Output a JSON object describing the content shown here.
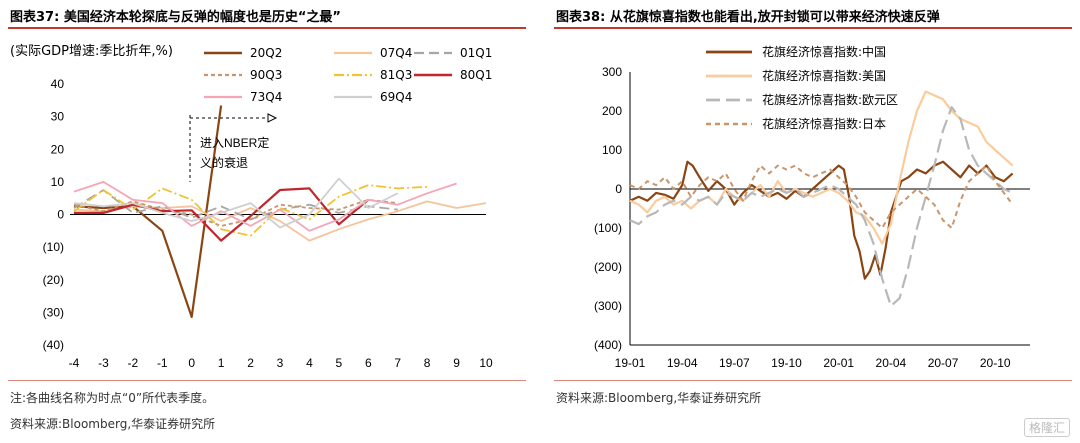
{
  "left": {
    "title": "图表37:  美国经济本轮探底与反弹的幅度也是历史“之最”",
    "unit": "(实际GDP增速:季比折年,%)",
    "annotation_line1": "进入NBER定",
    "annotation_line2": "义的衰退",
    "note": "注:各曲线名称为时点“0”所代表季度。",
    "source": "资料来源:Bloomberg,华泰证券研究所"
  },
  "right": {
    "title": "图表38:  从花旗惊喜指数也能看出,放开封锁可以带来经济快速反弹",
    "source": "资料来源:Bloomberg,华泰证券研究所"
  },
  "watermark": "格隆汇",
  "chart_data": [
    {
      "type": "line",
      "title": "美国经济本轮探底与反弹的幅度也是历史“之最”",
      "ylabel": "(实际GDP增速:季比折年,%)",
      "x": [
        -4,
        -3,
        -2,
        -1,
        0,
        1,
        2,
        3,
        4,
        5,
        6,
        7,
        8,
        9,
        10
      ],
      "ylim": [
        -40,
        40
      ],
      "yticks": [
        40,
        30,
        20,
        10,
        0,
        -10,
        -20,
        -30,
        -40
      ],
      "ytick_labels": [
        "40",
        "30",
        "20",
        "10",
        "0",
        "(10)",
        "(20)",
        "(30)",
        "(40)"
      ],
      "legend_position": "top",
      "series": [
        {
          "name": "20Q2",
          "color": "#8B4513",
          "dash": "solid",
          "width": 2.2,
          "x": [
            -4,
            -3,
            -2,
            -1,
            0,
            1
          ],
          "values": [
            2.5,
            2.0,
            2.5,
            -5.0,
            -31.4,
            33.4
          ]
        },
        {
          "name": "07Q4",
          "color": "#F4C49B",
          "dash": "solid",
          "width": 1.8,
          "x": [
            -4,
            -3,
            -2,
            -1,
            0,
            1,
            2,
            3,
            4,
            5,
            6,
            7,
            8,
            9,
            10
          ],
          "values": [
            1.5,
            1.0,
            2.5,
            2.0,
            2.5,
            -2.0,
            2.0,
            -2.0,
            -8.0,
            -4.5,
            -1.5,
            1.0,
            4.0,
            2.0,
            3.5
          ]
        },
        {
          "name": "01Q1",
          "color": "#A6A6A6",
          "dash": "10,5",
          "width": 1.8,
          "x": [
            -4,
            -3,
            -2,
            -1,
            0,
            1,
            2,
            3,
            4,
            5,
            6,
            7
          ],
          "values": [
            2.0,
            7.5,
            0.5,
            2.5,
            -1.0,
            2.5,
            -1.5,
            1.5,
            3.0,
            0.5,
            2.5,
            1.5
          ]
        },
        {
          "name": "90Q3",
          "color": "#C8956C",
          "dash": "4,3",
          "width": 1.8,
          "x": [
            -4,
            -3,
            -2,
            -1,
            0,
            1,
            2,
            3,
            4,
            5,
            6,
            7
          ],
          "values": [
            3.0,
            1.0,
            4.0,
            1.5,
            0.0,
            -3.5,
            -1.5,
            3.0,
            2.0,
            1.5,
            4.5,
            3.5
          ]
        },
        {
          "name": "81Q3",
          "color": "#F1C232",
          "dash": "10,3,2,3",
          "width": 1.8,
          "x": [
            -4,
            -3,
            -2,
            -1,
            0,
            1,
            2,
            3,
            4,
            5,
            6,
            7,
            8
          ],
          "values": [
            1.0,
            7.5,
            1.5,
            8.0,
            4.5,
            -4.5,
            -6.5,
            2.0,
            -1.5,
            5.5,
            9.0,
            8.0,
            8.5
          ]
        },
        {
          "name": "80Q1",
          "color": "#C0272D",
          "dash": "solid",
          "width": 2.2,
          "x": [
            -4,
            -3,
            -2,
            -1,
            0,
            1,
            2,
            3,
            4,
            5,
            6
          ],
          "values": [
            0.5,
            0.5,
            3.0,
            1.0,
            1.3,
            -8.0,
            -0.5,
            7.5,
            8.0,
            -3.0,
            4.5
          ]
        },
        {
          "name": "73Q4",
          "color": "#F4A6B6",
          "dash": "solid",
          "width": 1.8,
          "x": [
            -4,
            -3,
            -2,
            -1,
            0,
            1,
            2,
            3,
            4,
            5,
            6,
            7,
            8,
            9
          ],
          "values": [
            7.0,
            10.0,
            4.5,
            3.5,
            -3.5,
            1.0,
            -3.5,
            1.5,
            -5.0,
            -1.5,
            4.5,
            3.0,
            6.5,
            9.5
          ]
        },
        {
          "name": "69Q4",
          "color": "#CFCFCF",
          "dash": "solid",
          "width": 1.8,
          "x": [
            -4,
            -3,
            -2,
            -1,
            0,
            1,
            2,
            3,
            4,
            5,
            6,
            7
          ],
          "values": [
            3.5,
            2.5,
            3.5,
            0.5,
            -2.0,
            0.5,
            3.5,
            -4.0,
            0.0,
            11.0,
            2.0,
            6.5
          ]
        }
      ]
    },
    {
      "type": "line",
      "title": "从花旗惊喜指数也能看出,放开封锁可以带来经济快速反弹",
      "x_labels": [
        "19-01",
        "19-04",
        "19-07",
        "19-10",
        "20-01",
        "20-04",
        "20-07",
        "20-10"
      ],
      "x_range": [
        0,
        23
      ],
      "ylim": [
        -400,
        300
      ],
      "yticks": [
        300,
        200,
        100,
        0,
        -100,
        -200,
        -300,
        -400
      ],
      "ytick_labels": [
        "300",
        "200",
        "100",
        "0",
        "(100)",
        "(200)",
        "(300)",
        "(400)"
      ],
      "legend_position": "top-left",
      "series": [
        {
          "name": "花旗经济惊喜指数:中国",
          "color": "#8B4513",
          "dash": "solid",
          "width": 2.2,
          "x": [
            0,
            0.5,
            1,
            1.5,
            2,
            2.5,
            3,
            3.3,
            3.6,
            4,
            4.5,
            5,
            5.5,
            6,
            6.5,
            7,
            7.5,
            8,
            8.5,
            9,
            9.5,
            10,
            10.5,
            11,
            11.5,
            12,
            12.3,
            12.6,
            12.9,
            13.2,
            13.5,
            13.8,
            14.1,
            14.4,
            14.7,
            15,
            15.3,
            15.6,
            16,
            16.5,
            17,
            17.5,
            18,
            18.5,
            19,
            19.5,
            20,
            20.5,
            21,
            21.5,
            22
          ],
          "values": [
            -30,
            -20,
            -30,
            -10,
            -15,
            -25,
            10,
            70,
            60,
            30,
            -5,
            20,
            0,
            -40,
            -10,
            10,
            -5,
            -20,
            -10,
            -25,
            -5,
            -20,
            0,
            20,
            40,
            60,
            50,
            -20,
            -120,
            -160,
            -230,
            -210,
            -170,
            -220,
            -150,
            -60,
            -20,
            20,
            30,
            50,
            40,
            60,
            70,
            50,
            30,
            60,
            40,
            60,
            30,
            20,
            40
          ]
        },
        {
          "name": "花旗经济惊喜指数:美国",
          "color": "#FBCB9C",
          "dash": "solid",
          "width": 2.2,
          "x": [
            0,
            0.5,
            1,
            1.5,
            2,
            2.5,
            3,
            3.5,
            4,
            4.5,
            5,
            5.5,
            6,
            6.5,
            7,
            7.5,
            8,
            8.5,
            9,
            9.5,
            10,
            10.5,
            11,
            11.5,
            12,
            12.5,
            13,
            13.5,
            14,
            14.5,
            15,
            15.5,
            16,
            16.5,
            17,
            17.5,
            18,
            18.5,
            19,
            19.5,
            20,
            20.5,
            21,
            21.5,
            22
          ],
          "values": [
            -30,
            -40,
            -60,
            -30,
            -20,
            -40,
            -30,
            -50,
            -30,
            -20,
            -40,
            0,
            -20,
            -30,
            -10,
            10,
            -20,
            20,
            -10,
            0,
            -10,
            -20,
            -10,
            0,
            -10,
            -30,
            -60,
            -70,
            -100,
            -140,
            -90,
            20,
            120,
            200,
            250,
            240,
            230,
            200,
            180,
            170,
            160,
            120,
            100,
            80,
            60
          ]
        },
        {
          "name": "花旗经济惊喜指数:欧元区",
          "color": "#B8B8B8",
          "dash": "14,6",
          "width": 2.2,
          "x": [
            0,
            0.5,
            1,
            1.5,
            2,
            2.5,
            3,
            3.5,
            4,
            4.5,
            5,
            5.5,
            6,
            6.5,
            7,
            7.5,
            8,
            8.5,
            9,
            9.5,
            10,
            10.5,
            11,
            11.5,
            12,
            12.5,
            13,
            13.5,
            14,
            14.5,
            15,
            15.5,
            16,
            16.5,
            17,
            17.5,
            18,
            18.5,
            19,
            19.5,
            20,
            20.5,
            21,
            21.5,
            22
          ],
          "values": [
            -80,
            -90,
            -70,
            -60,
            -40,
            -30,
            -40,
            -20,
            -30,
            -20,
            -40,
            -10,
            -20,
            -30,
            -10,
            -20,
            -10,
            0,
            -10,
            0,
            -20,
            -10,
            0,
            10,
            0,
            -20,
            -40,
            -80,
            -140,
            -230,
            -300,
            -280,
            -200,
            -100,
            -20,
            60,
            150,
            210,
            180,
            100,
            60,
            40,
            20,
            0,
            -10
          ]
        },
        {
          "name": "花旗经济惊喜指数:日本",
          "color": "#C8956C",
          "dash": "5,4",
          "width": 2.0,
          "x": [
            0,
            0.5,
            1,
            1.5,
            2,
            2.5,
            3,
            3.5,
            4,
            4.5,
            5,
            5.5,
            6,
            6.5,
            7,
            7.5,
            8,
            8.5,
            9,
            9.5,
            10,
            10.5,
            11,
            11.5,
            12,
            12.5,
            13,
            13.5,
            14,
            14.5,
            15,
            15.5,
            16,
            16.5,
            17,
            17.5,
            18,
            18.5,
            19,
            19.5,
            20,
            20.5,
            21,
            21.5,
            22
          ],
          "values": [
            10,
            0,
            20,
            10,
            30,
            0,
            20,
            -20,
            10,
            30,
            20,
            40,
            0,
            -30,
            20,
            60,
            40,
            60,
            50,
            60,
            40,
            30,
            40,
            50,
            30,
            10,
            -20,
            -60,
            -80,
            -100,
            -60,
            -40,
            -20,
            0,
            -20,
            -40,
            -80,
            -100,
            -30,
            20,
            40,
            60,
            20,
            -10,
            -40
          ]
        }
      ]
    }
  ]
}
